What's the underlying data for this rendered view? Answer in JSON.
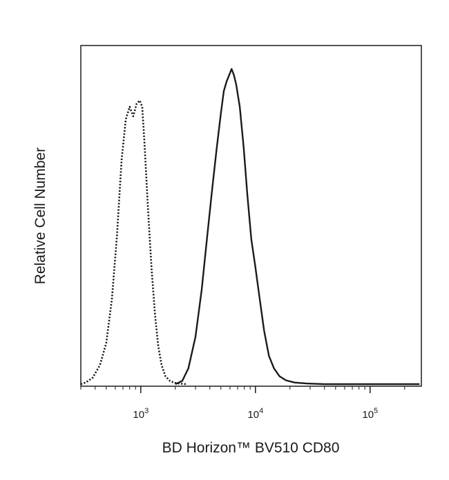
{
  "chart_data": {
    "type": "line",
    "title": "",
    "xlabel": "BD Horizon™ BV510 CD80",
    "ylabel": "Relative Cell Number",
    "x_scale": "log",
    "xlim": [
      300,
      280000
    ],
    "ylim": [
      0,
      1.0
    ],
    "grid": false,
    "x_ticks": [
      {
        "base": "10",
        "exp": "3",
        "value": 1000
      },
      {
        "base": "10",
        "exp": "4",
        "value": 10000
      },
      {
        "base": "10",
        "exp": "5",
        "value": 100000
      }
    ],
    "series": [
      {
        "style": "dotted",
        "x": [
          300,
          330,
          380,
          440,
          500,
          560,
          620,
          680,
          740,
          800,
          860,
          920,
          980,
          1030,
          1080,
          1150,
          1240,
          1330,
          1420,
          1520,
          1640,
          1800,
          1980,
          2150,
          2300,
          2500
        ],
        "y": [
          0.0,
          0.005,
          0.02,
          0.06,
          0.13,
          0.27,
          0.47,
          0.71,
          0.84,
          0.88,
          0.85,
          0.89,
          0.9,
          0.88,
          0.76,
          0.57,
          0.37,
          0.22,
          0.12,
          0.06,
          0.025,
          0.01,
          0.004,
          0.002,
          0.001,
          0.0
        ]
      },
      {
        "style": "solid",
        "x": [
          2000,
          2300,
          2600,
          3000,
          3400,
          3800,
          4200,
          4600,
          5000,
          5300,
          5600,
          5900,
          6200,
          6500,
          6800,
          7300,
          7900,
          8500,
          9200,
          10000,
          10900,
          11900,
          13100,
          14500,
          16200,
          18500,
          22000,
          28000,
          40000,
          80000,
          270000
        ],
        "y": [
          0.0,
          0.01,
          0.05,
          0.15,
          0.3,
          0.47,
          0.62,
          0.75,
          0.86,
          0.93,
          0.96,
          0.98,
          1.0,
          0.98,
          0.95,
          0.88,
          0.75,
          0.6,
          0.46,
          0.37,
          0.27,
          0.17,
          0.09,
          0.05,
          0.025,
          0.012,
          0.005,
          0.002,
          0.0,
          0.0,
          0.0
        ]
      }
    ]
  }
}
